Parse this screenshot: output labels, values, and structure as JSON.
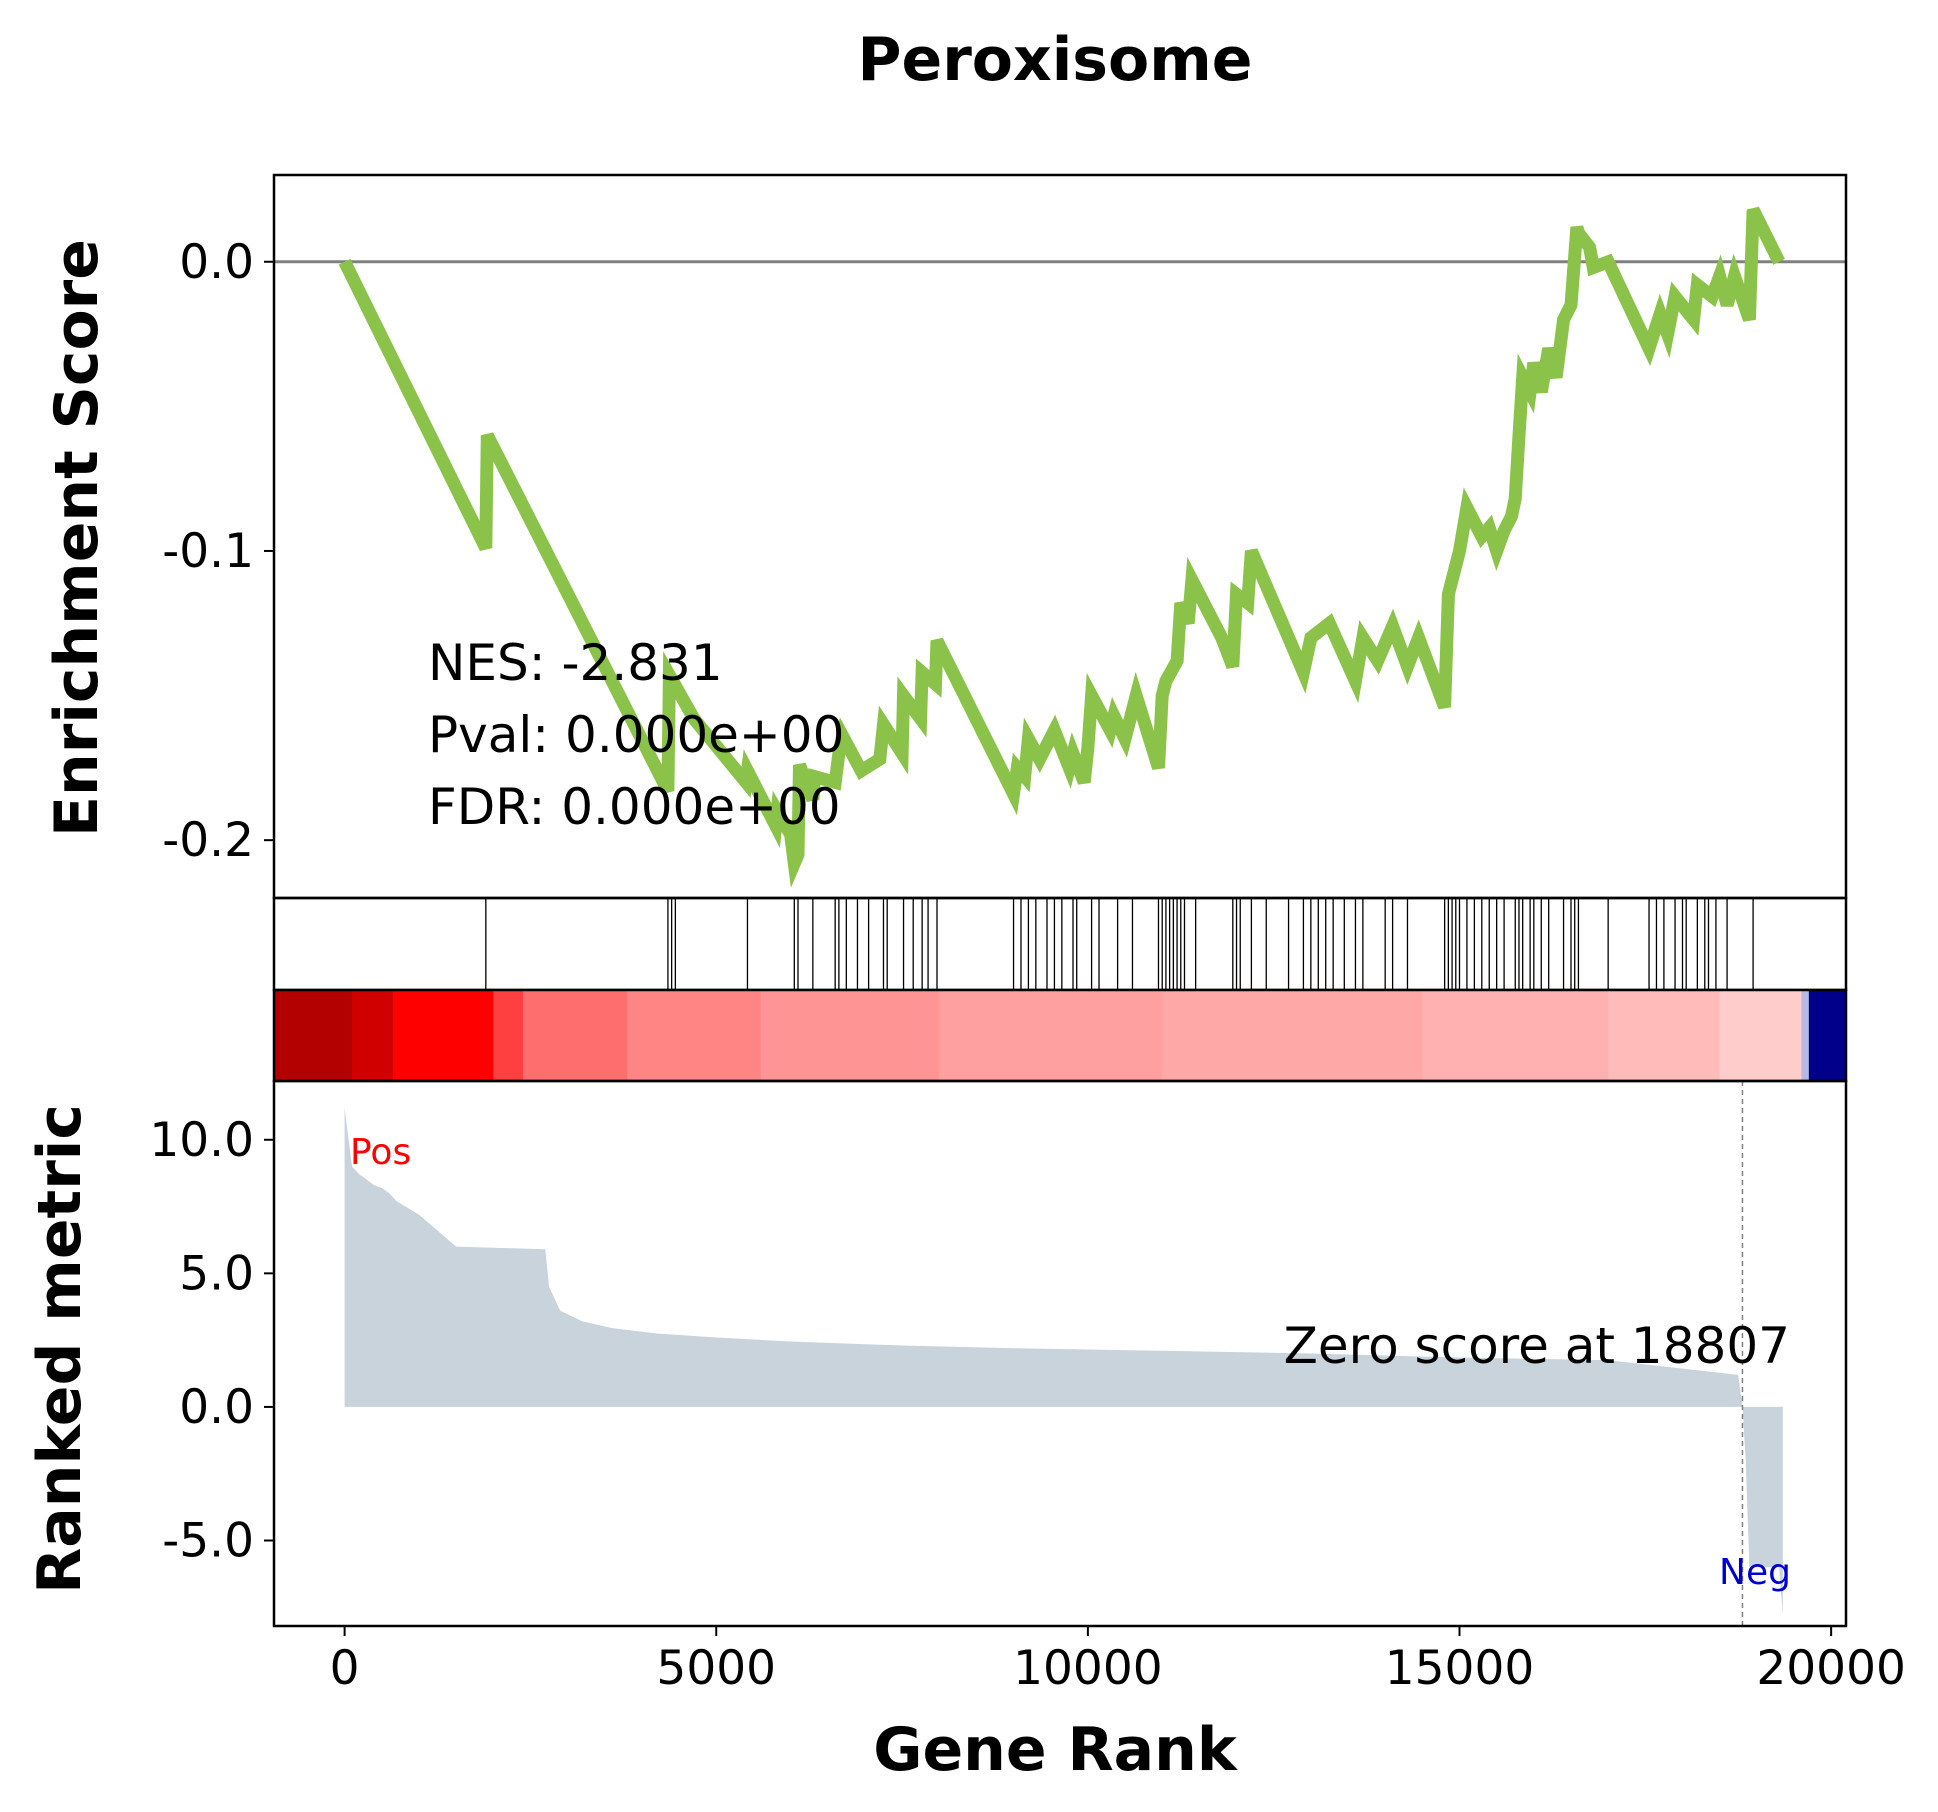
{
  "chart_data": {
    "type": "line",
    "title": "Peroxisome",
    "xlabel": "Gene Rank",
    "ylabel_top": "Enrichment Score",
    "ylabel_bottom": "Ranked metric",
    "xlim": [
      -950,
      20200
    ],
    "ylim_top": [
      -0.22,
      0.03
    ],
    "ylim_bottom": [
      -8.2,
      12.2
    ],
    "x_ticks": [
      0,
      5000,
      10000,
      15000,
      20000
    ],
    "y_ticks_top": [
      0.0,
      -0.1,
      -0.2
    ],
    "y_tick_labels_top": [
      "0.0",
      "-0.1",
      "-0.2"
    ],
    "y_ticks_bottom": [
      10.0,
      5.0,
      0.0,
      -5.0
    ],
    "y_tick_labels_bottom": [
      "10.0",
      "5.0",
      "0.0",
      "-5.0"
    ],
    "line_color": "#8bc34a",
    "metric_fill_color": "#c8d3dc",
    "annotations": {
      "nes": "NES: -2.831",
      "pval": "Pval: 0.000e+00",
      "fdr": "FDR: 0.000e+00",
      "zero_score": "Zero score at 18807",
      "pos": "Pos",
      "neg": "Neg"
    },
    "zero_score_rank": 18807,
    "series": [
      {
        "points": [
          [
            0,
            0.0
          ],
          [
            1900,
            -0.099
          ],
          [
            1920,
            -0.06
          ],
          [
            4350,
            -0.183
          ],
          [
            4370,
            -0.143
          ],
          [
            4700,
            -0.158
          ],
          [
            5400,
            -0.18
          ],
          [
            5420,
            -0.176
          ],
          [
            5800,
            -0.195
          ],
          [
            5820,
            -0.19
          ],
          [
            6000,
            -0.198
          ],
          [
            6050,
            -0.208
          ],
          [
            6100,
            -0.205
          ],
          [
            6120,
            -0.174
          ],
          [
            6300,
            -0.186
          ],
          [
            6320,
            -0.178
          ],
          [
            6600,
            -0.18
          ],
          [
            6650,
            -0.17
          ],
          [
            6700,
            -0.164
          ],
          [
            6950,
            -0.176
          ],
          [
            7200,
            -0.172
          ],
          [
            7250,
            -0.16
          ],
          [
            7500,
            -0.17
          ],
          [
            7520,
            -0.15
          ],
          [
            7750,
            -0.158
          ],
          [
            7770,
            -0.142
          ],
          [
            7950,
            -0.146
          ],
          [
            7970,
            -0.131
          ],
          [
            9000,
            -0.184
          ],
          [
            9050,
            -0.175
          ],
          [
            9150,
            -0.178
          ],
          [
            9200,
            -0.165
          ],
          [
            9350,
            -0.172
          ],
          [
            9550,
            -0.162
          ],
          [
            9750,
            -0.175
          ],
          [
            9800,
            -0.17
          ],
          [
            9950,
            -0.18
          ],
          [
            10000,
            -0.168
          ],
          [
            10050,
            -0.15
          ],
          [
            10300,
            -0.162
          ],
          [
            10350,
            -0.157
          ],
          [
            10500,
            -0.165
          ],
          [
            10650,
            -0.15
          ],
          [
            10950,
            -0.175
          ],
          [
            11000,
            -0.15
          ],
          [
            11050,
            -0.145
          ],
          [
            11200,
            -0.138
          ],
          [
            11250,
            -0.118
          ],
          [
            11350,
            -0.125
          ],
          [
            11400,
            -0.11
          ],
          [
            11800,
            -0.13
          ],
          [
            11950,
            -0.14
          ],
          [
            12000,
            -0.115
          ],
          [
            12150,
            -0.118
          ],
          [
            12200,
            -0.1
          ],
          [
            12700,
            -0.13
          ],
          [
            12900,
            -0.142
          ],
          [
            13000,
            -0.13
          ],
          [
            13250,
            -0.125
          ],
          [
            13600,
            -0.145
          ],
          [
            13700,
            -0.13
          ],
          [
            13900,
            -0.138
          ],
          [
            14100,
            -0.126
          ],
          [
            14300,
            -0.14
          ],
          [
            14450,
            -0.13
          ],
          [
            14800,
            -0.154
          ],
          [
            14850,
            -0.115
          ],
          [
            15000,
            -0.1
          ],
          [
            15100,
            -0.085
          ],
          [
            15300,
            -0.095
          ],
          [
            15400,
            -0.092
          ],
          [
            15500,
            -0.1
          ],
          [
            15600,
            -0.093
          ],
          [
            15700,
            -0.088
          ],
          [
            15750,
            -0.082
          ],
          [
            15800,
            -0.06
          ],
          [
            15850,
            -0.04
          ],
          [
            15950,
            -0.045
          ],
          [
            16000,
            -0.035
          ],
          [
            16100,
            -0.045
          ],
          [
            16200,
            -0.03
          ],
          [
            16300,
            -0.04
          ],
          [
            16400,
            -0.02
          ],
          [
            16500,
            -0.015
          ],
          [
            16580,
            0.012
          ],
          [
            16600,
            0.01
          ],
          [
            16750,
            0.005
          ],
          [
            16800,
            -0.002
          ],
          [
            17000,
            0.0
          ],
          [
            17550,
            -0.03
          ],
          [
            17700,
            -0.018
          ],
          [
            17800,
            -0.025
          ],
          [
            17900,
            -0.012
          ],
          [
            18150,
            -0.02
          ],
          [
            18200,
            -0.008
          ],
          [
            18400,
            -0.012
          ],
          [
            18500,
            -0.005
          ],
          [
            18600,
            -0.015
          ],
          [
            18700,
            -0.005
          ],
          [
            18900,
            -0.02
          ],
          [
            18950,
            0.018
          ],
          [
            19300,
            0.0
          ]
        ]
      }
    ],
    "hits": [
      1900,
      4350,
      4400,
      4450,
      5420,
      6050,
      6100,
      6300,
      6600,
      6650,
      6750,
      6900,
      7050,
      7250,
      7300,
      7520,
      7650,
      7770,
      7850,
      7970,
      9000,
      9100,
      9200,
      9300,
      9450,
      9550,
      9650,
      9800,
      9850,
      10050,
      10150,
      10400,
      10600,
      10950,
      11000,
      11050,
      11100,
      11150,
      11200,
      11250,
      11300,
      11450,
      11950,
      12000,
      12050,
      12200,
      12400,
      12700,
      12900,
      13000,
      13100,
      13200,
      13300,
      13450,
      13600,
      13700,
      14000,
      14100,
      14300,
      14800,
      14850,
      14900,
      14950,
      15000,
      15100,
      15200,
      15300,
      15400,
      15500,
      15600,
      15750,
      15800,
      15850,
      15950,
      16000,
      16100,
      16200,
      16400,
      16500,
      16550,
      16600,
      17000,
      17550,
      17650,
      17750,
      17900,
      18000,
      18050,
      18200,
      18300,
      18350,
      18450,
      18600,
      18950
    ],
    "ranked_metric": [
      [
        0,
        11.2
      ],
      [
        100,
        9.0
      ],
      [
        200,
        8.7
      ],
      [
        300,
        8.5
      ],
      [
        400,
        8.3
      ],
      [
        500,
        8.2
      ],
      [
        600,
        8.0
      ],
      [
        700,
        7.7
      ],
      [
        1000,
        7.2
      ],
      [
        1500,
        6.0
      ],
      [
        2700,
        5.9
      ],
      [
        2750,
        4.5
      ],
      [
        2900,
        3.6
      ],
      [
        3200,
        3.2
      ],
      [
        3600,
        2.95
      ],
      [
        4200,
        2.75
      ],
      [
        5000,
        2.6
      ],
      [
        6000,
        2.45
      ],
      [
        7500,
        2.3
      ],
      [
        9000,
        2.2
      ],
      [
        11000,
        2.1
      ],
      [
        13000,
        2.0
      ],
      [
        15000,
        1.85
      ],
      [
        17000,
        1.75
      ],
      [
        18750,
        1.2
      ],
      [
        18807,
        0.0
      ],
      [
        18850,
        -2.0
      ],
      [
        18900,
        -6.0
      ],
      [
        19300,
        -6.0
      ],
      [
        19350,
        -7.8
      ]
    ]
  }
}
